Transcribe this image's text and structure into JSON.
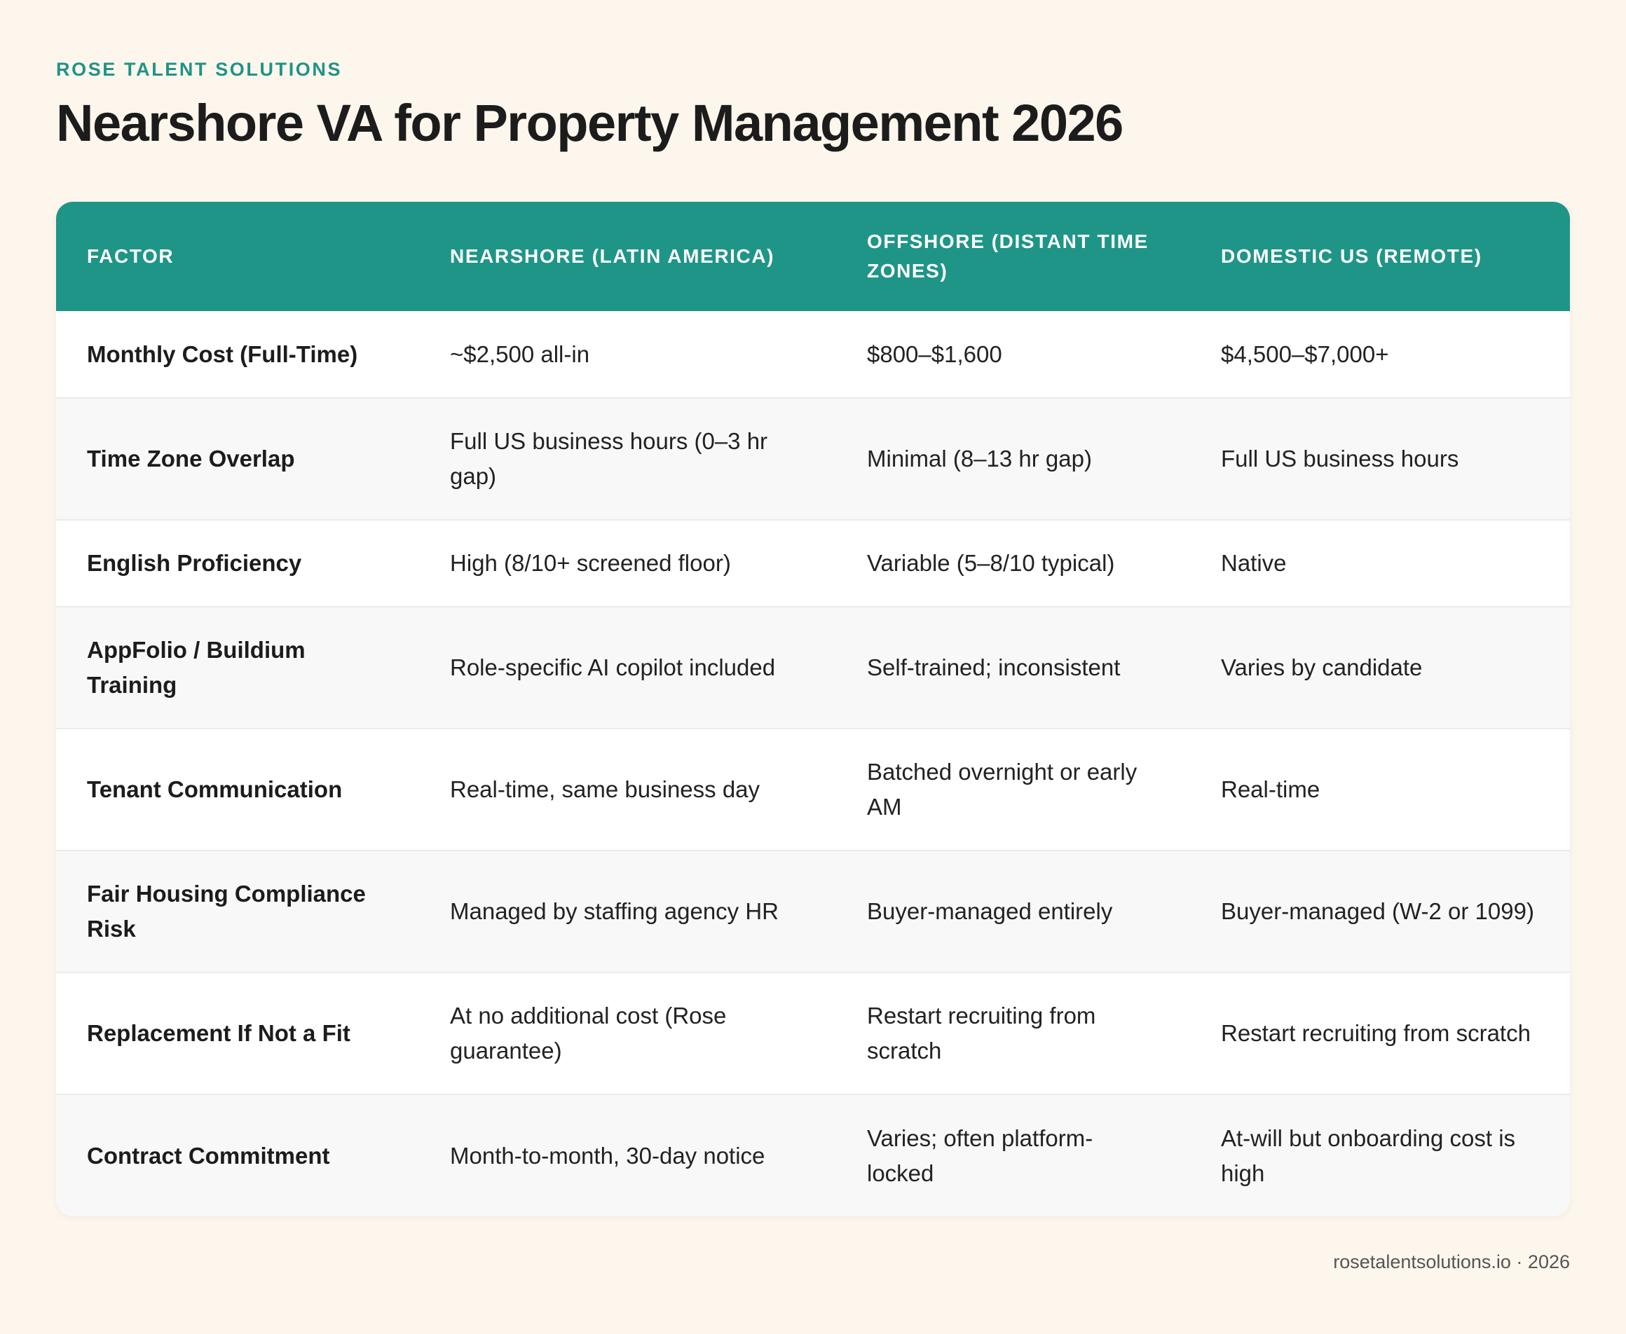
{
  "brand": "ROSE TALENT SOLUTIONS",
  "title": "Nearshore VA for Property Management 2026",
  "table": {
    "headers": [
      "FACTOR",
      "NEARSHORE (LATIN AMERICA)",
      "OFFSHORE (DISTANT TIME ZONES)",
      "DOMESTIC US (REMOTE)"
    ],
    "rows": [
      [
        "Monthly Cost (Full-Time)",
        "~$2,500 all-in",
        "$800–$1,600",
        "$4,500–$7,000+"
      ],
      [
        "Time Zone Overlap",
        "Full US business hours (0–3 hr gap)",
        "Minimal (8–13 hr gap)",
        "Full US business hours"
      ],
      [
        "English Proficiency",
        "High (8/10+ screened floor)",
        "Variable (5–8/10 typical)",
        "Native"
      ],
      [
        "AppFolio / Buildium Training",
        "Role-specific AI copilot included",
        "Self-trained; inconsistent",
        "Varies by candidate"
      ],
      [
        "Tenant Communication",
        "Real-time, same business day",
        "Batched overnight or early AM",
        "Real-time"
      ],
      [
        "Fair Housing Compliance Risk",
        "Managed by staffing agency HR",
        "Buyer-managed entirely",
        "Buyer-managed (W-2 or 1099)"
      ],
      [
        "Replacement If Not a Fit",
        "At no additional cost (Rose guarantee)",
        "Restart recruiting from scratch",
        "Restart recruiting from scratch"
      ],
      [
        "Contract Commitment",
        "Month-to-month, 30-day notice",
        "Varies; often platform-locked",
        "At-will but onboarding cost is high"
      ]
    ]
  },
  "footer": "rosetalentsolutions.io · 2026",
  "colors": {
    "accent": "#1f9587",
    "background": "#fdf6ec"
  }
}
